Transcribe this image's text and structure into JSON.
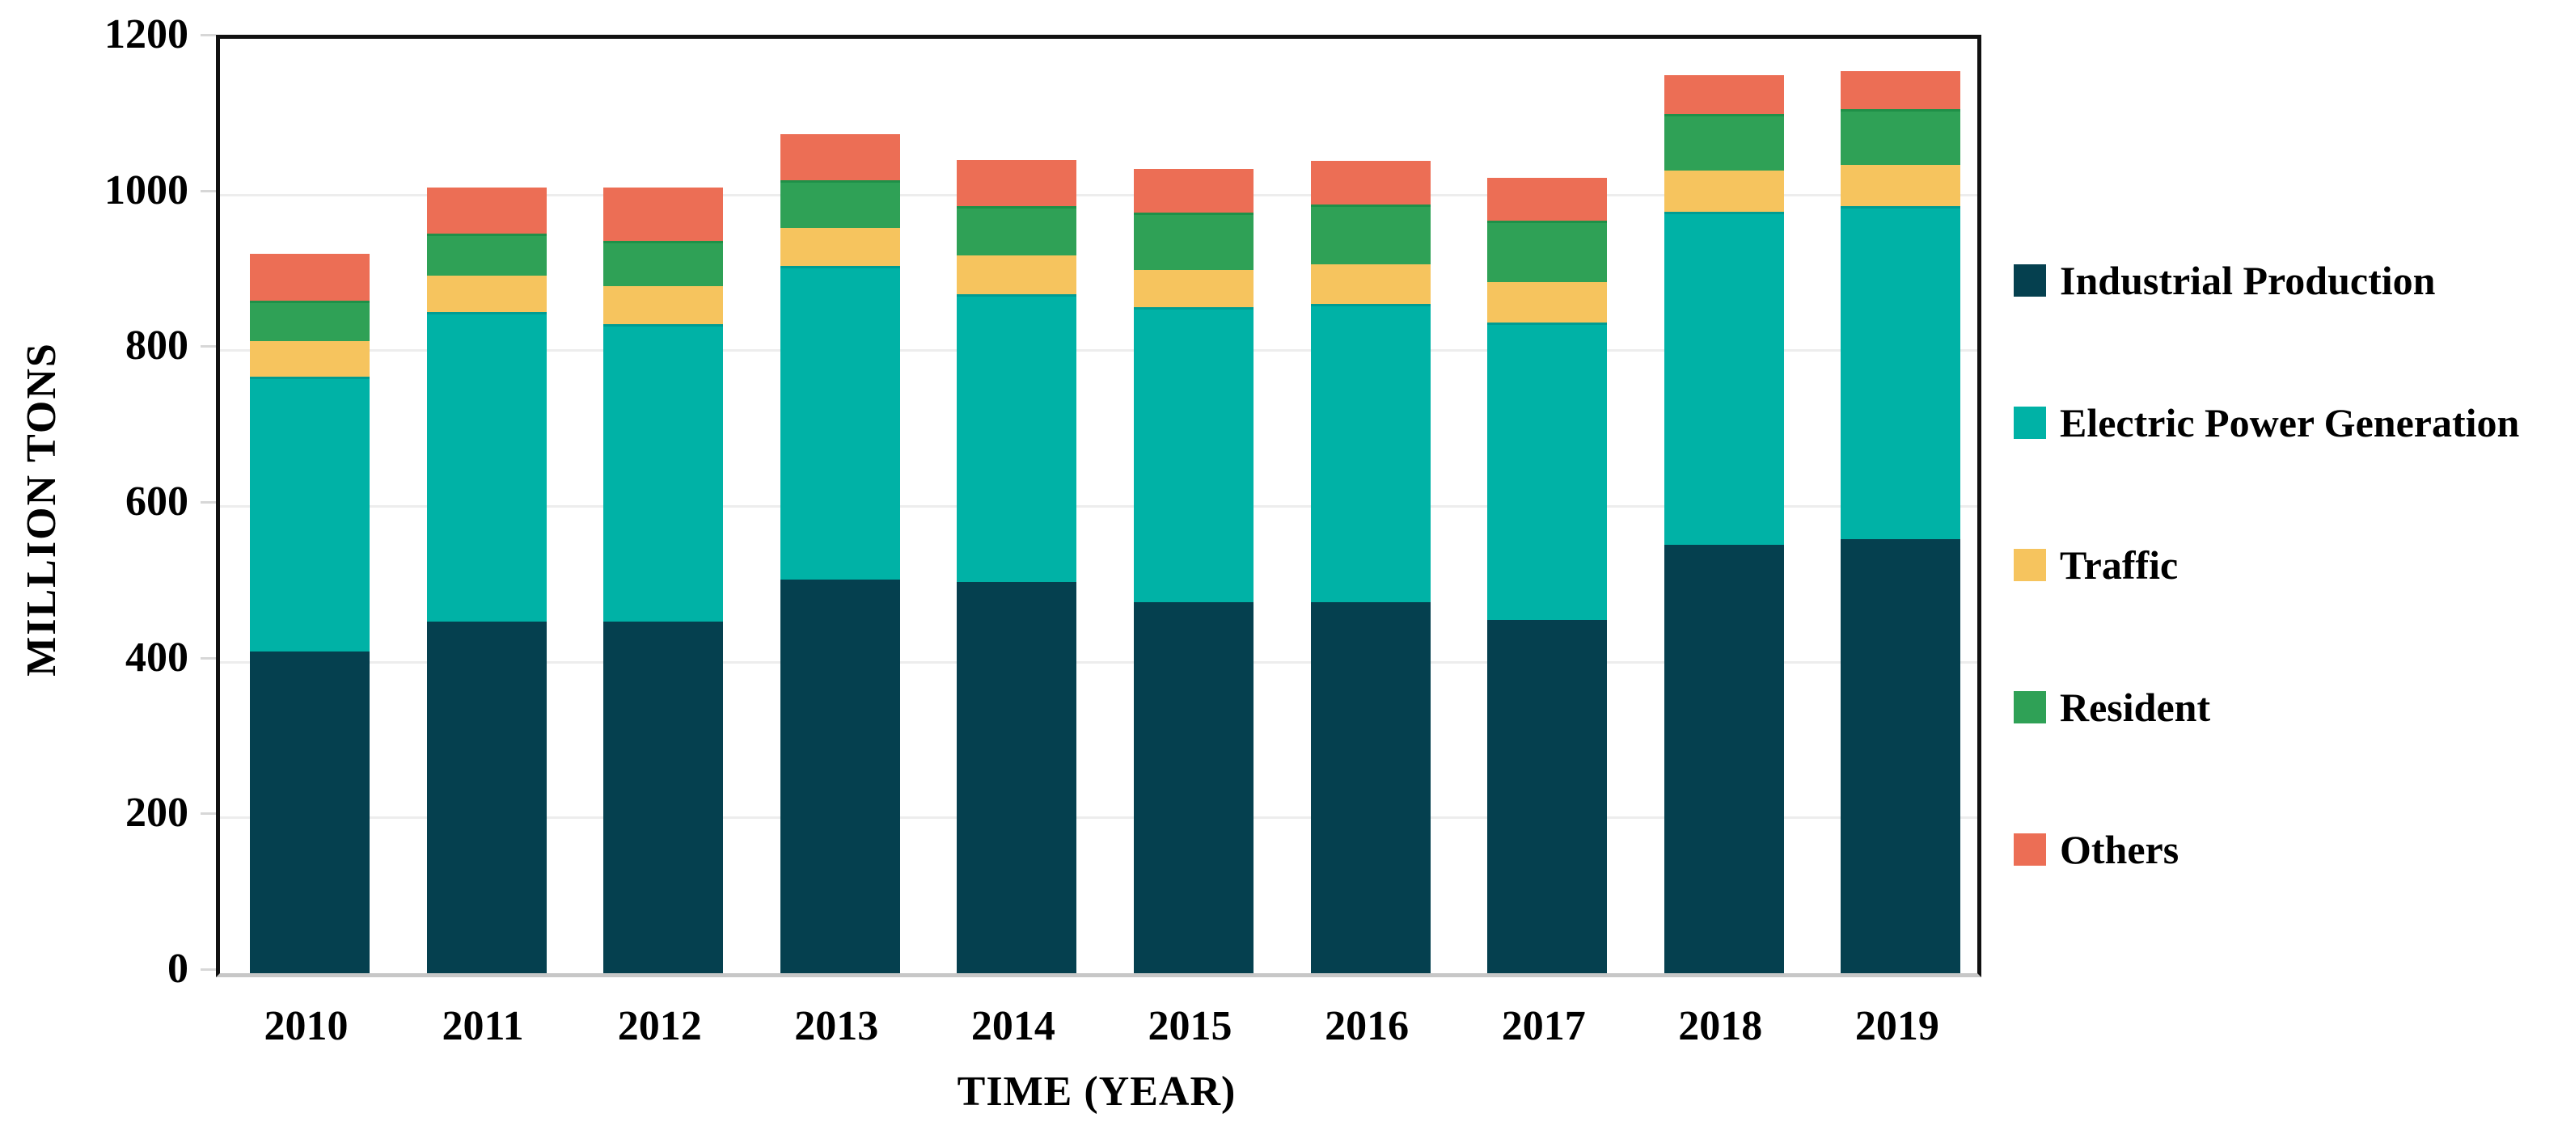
{
  "figure": {
    "background_color": "#ffffff",
    "text_color": "#000000",
    "axis_frame_color": "#111111",
    "baseline_color": "#c7c7c7",
    "gridline_color": "#ededed",
    "tick_color": "#d7d7d7"
  },
  "y_axis": {
    "title": "MILLION TONS",
    "tick_labels": [
      "0",
      "200",
      "400",
      "600",
      "800",
      "1000",
      "1200"
    ]
  },
  "x_axis": {
    "title": "TIME (YEAR)",
    "tick_labels": [
      "2010",
      "2011",
      "2012",
      "2013",
      "2014",
      "2015",
      "2016",
      "2017",
      "2018",
      "2019"
    ]
  },
  "legend": {
    "position": "right",
    "items": [
      {
        "label": "Industrial Production",
        "color": "#05404f"
      },
      {
        "label": "Electric Power Generation",
        "color": "#00b2a6"
      },
      {
        "label": "Traffic",
        "color": "#f6c45e"
      },
      {
        "label": "Resident",
        "color": "#2fa156"
      },
      {
        "label": "Others",
        "color": "#ec6e55"
      }
    ]
  },
  "chart_data": {
    "type": "bar",
    "stacked": true,
    "orientation": "vertical",
    "title": "",
    "xlabel": "TIME (YEAR)",
    "ylabel": "MILLION TONS",
    "ylim": [
      0,
      1200
    ],
    "ytick_step": 200,
    "grid": true,
    "legend_position": "right",
    "categories": [
      "2010",
      "2011",
      "2012",
      "2013",
      "2014",
      "2015",
      "2016",
      "2017",
      "2018",
      "2019"
    ],
    "series": [
      {
        "name": "Industrial Production",
        "color": "#05404f",
        "edge_color": "#05404f",
        "values": [
          413,
          452,
          452,
          506,
          502,
          477,
          477,
          454,
          550,
          557
        ]
      },
      {
        "name": "Electric Power Generation",
        "color": "#00b2a6",
        "edge_color": "#009c92",
        "values": [
          353,
          397,
          382,
          402,
          370,
          378,
          383,
          382,
          428,
          428
        ]
      },
      {
        "name": "Traffic",
        "color": "#f6c45e",
        "edge_color": "#f6c45e",
        "values": [
          46,
          47,
          48,
          49,
          50,
          48,
          50,
          52,
          53,
          53
        ]
      },
      {
        "name": "Resident",
        "color": "#2fa156",
        "edge_color": "#1f9048",
        "values": [
          52,
          54,
          58,
          61,
          63,
          74,
          77,
          78,
          72,
          72
        ]
      },
      {
        "name": "Others",
        "color": "#ec6e55",
        "edge_color": "#ec6e55",
        "values": [
          60,
          59,
          69,
          60,
          59,
          56,
          56,
          55,
          50,
          48
        ]
      }
    ],
    "totals": [
      924,
      1009,
      1009,
      1078,
      1044,
      1033,
      1043,
      1021,
      1153,
      1158
    ]
  }
}
